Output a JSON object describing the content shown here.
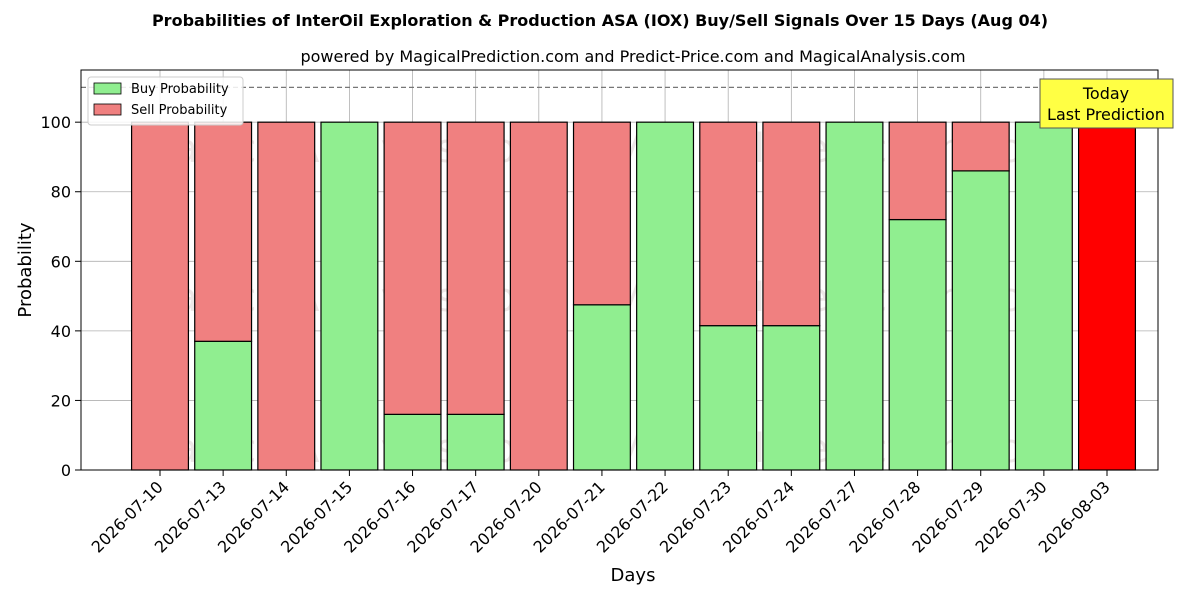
{
  "chart_data": {
    "type": "bar",
    "stacked": true,
    "title": "Probabilities of InterOil Exploration & Production ASA (IOX) Buy/Sell Signals Over 15 Days (Aug 04)",
    "subtitle": "powered by MagicalPrediction.com and Predict-Price.com and MagicalAnalysis.com",
    "xlabel": "Days",
    "ylabel": "Probability",
    "ylim": [
      0,
      115
    ],
    "yticks": [
      0,
      20,
      40,
      60,
      80,
      100
    ],
    "grid": true,
    "legend_position": "top-left",
    "reference_line": 110,
    "categories": [
      "2026-07-10",
      "2026-07-13",
      "2026-07-14",
      "2026-07-15",
      "2026-07-16",
      "2026-07-17",
      "2026-07-20",
      "2026-07-21",
      "2026-07-22",
      "2026-07-23",
      "2026-07-24",
      "2026-07-27",
      "2026-07-28",
      "2026-07-29",
      "2026-07-30",
      "2026-08-03"
    ],
    "series": [
      {
        "name": "Buy Probability",
        "color": "#90ee90",
        "values": [
          0,
          37,
          0,
          100,
          16,
          16,
          0,
          47.5,
          100,
          41.5,
          41.5,
          100,
          72,
          86,
          100,
          0
        ]
      },
      {
        "name": "Sell Probability",
        "color": "#f08080",
        "values": [
          100,
          63,
          100,
          0,
          84,
          84,
          100,
          52.5,
          0,
          58.5,
          58.5,
          0,
          28,
          14,
          0,
          100
        ]
      }
    ],
    "highlight": {
      "index": 15,
      "color": "#ff0000"
    },
    "annotation": {
      "lines": [
        "Today",
        "Last Prediction"
      ],
      "background": "#ffff44"
    },
    "watermarks": [
      "MagicalAnalysis.com",
      "MagicalPrediction.com"
    ]
  }
}
